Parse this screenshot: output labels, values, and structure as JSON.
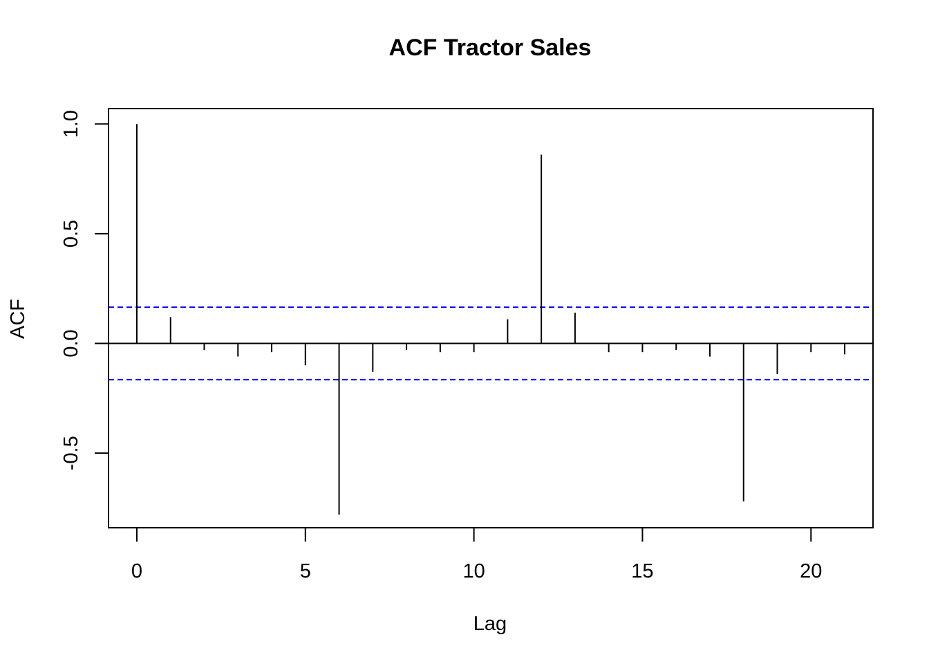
{
  "chart_data": {
    "type": "bar",
    "title": "ACF Tractor Sales",
    "xlabel": "Lag",
    "ylabel": "ACF",
    "x": [
      0,
      1,
      2,
      3,
      4,
      5,
      6,
      7,
      8,
      9,
      10,
      11,
      12,
      13,
      14,
      15,
      16,
      17,
      18,
      19,
      20,
      21
    ],
    "values": [
      1.0,
      0.12,
      -0.03,
      -0.06,
      -0.04,
      -0.1,
      -0.78,
      -0.13,
      -0.03,
      -0.04,
      -0.04,
      0.11,
      0.86,
      0.14,
      -0.04,
      -0.04,
      -0.03,
      -0.06,
      -0.72,
      -0.14,
      -0.04,
      -0.05
    ],
    "confidence_bound": 0.165,
    "confidence_color": "#0000ff",
    "bar_color": "#000000",
    "xlim": [
      -0.84,
      21.84
    ],
    "ylim": [
      -0.84,
      1.07
    ],
    "x_ticks": [
      0,
      5,
      10,
      15,
      20
    ],
    "x_tick_labels": [
      "0",
      "5",
      "10",
      "15",
      "20"
    ],
    "y_ticks": [
      -0.5,
      0.0,
      0.5,
      1.0
    ],
    "y_tick_labels": [
      "-0.5",
      "0.0",
      "0.5",
      "1.0"
    ],
    "grid": false,
    "legend": "none"
  }
}
